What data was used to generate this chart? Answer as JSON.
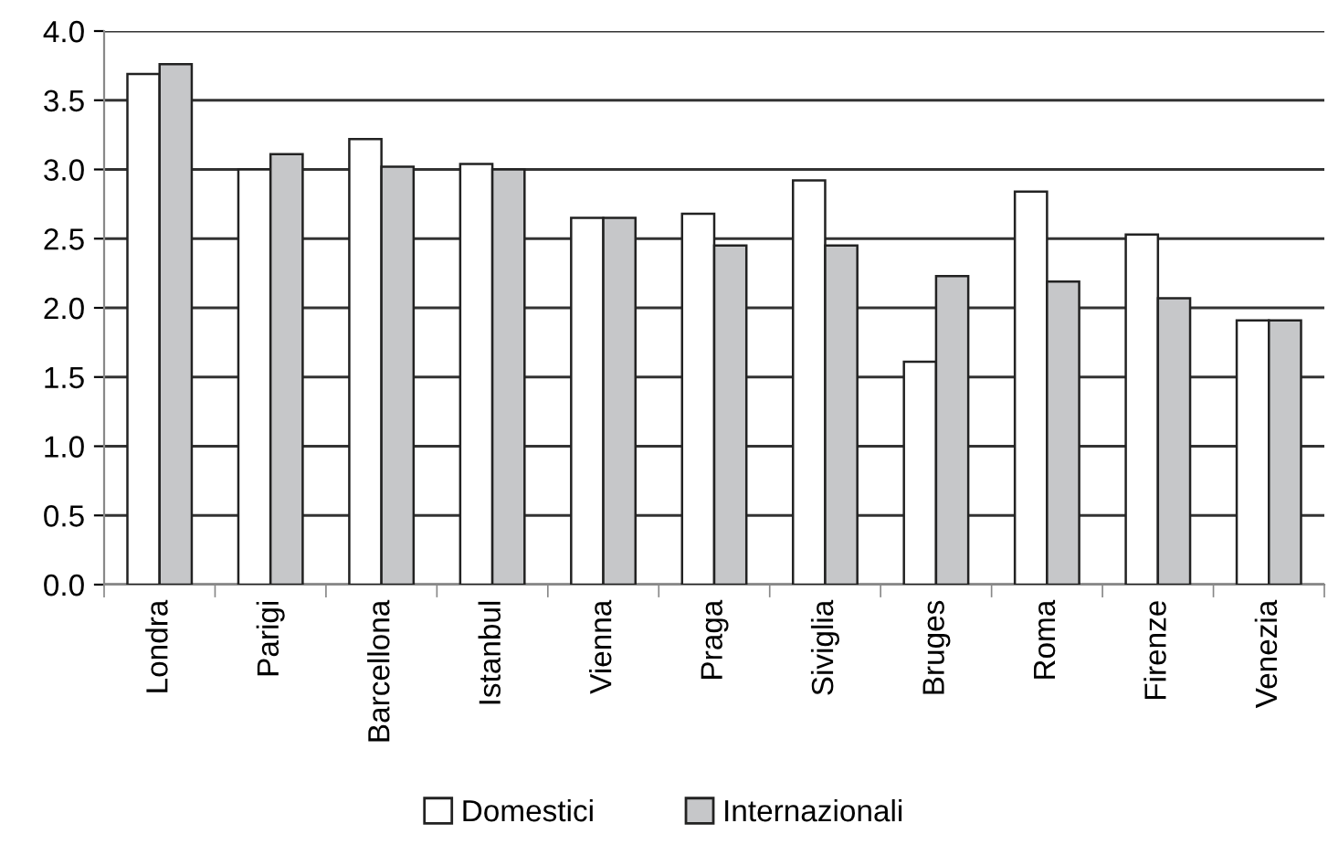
{
  "chart_data": {
    "type": "bar",
    "categories": [
      "Londra",
      "Parigi",
      "Barcellona",
      "Istanbul",
      "Vienna",
      "Praga",
      "Siviglia",
      "Bruges",
      "Roma",
      "Firenze",
      "Venezia"
    ],
    "series": [
      {
        "name": "Domestici",
        "color": "#ffffff",
        "values": [
          3.69,
          3.0,
          3.22,
          3.04,
          2.65,
          2.68,
          2.92,
          1.61,
          2.84,
          2.53,
          1.91
        ]
      },
      {
        "name": "Internazionali",
        "color": "#c6c7c9",
        "values": [
          3.76,
          3.11,
          3.02,
          3.0,
          2.65,
          2.45,
          2.45,
          2.23,
          2.19,
          2.07,
          1.91
        ]
      }
    ],
    "ylim": [
      0,
      4
    ],
    "yticks": [
      {
        "value": 0,
        "label": "0.0"
      },
      {
        "value": 0.5,
        "label": "0.5"
      },
      {
        "value": 1,
        "label": "1.0"
      },
      {
        "value": 1.5,
        "label": "1.5"
      },
      {
        "value": 2,
        "label": "2.0"
      },
      {
        "value": 2.5,
        "label": "2.5"
      },
      {
        "value": 3,
        "label": "3.0"
      },
      {
        "value": 3.5,
        "label": "3.5"
      },
      {
        "value": 4,
        "label": "4.0"
      }
    ],
    "grid": "y",
    "legend": "bottom"
  }
}
